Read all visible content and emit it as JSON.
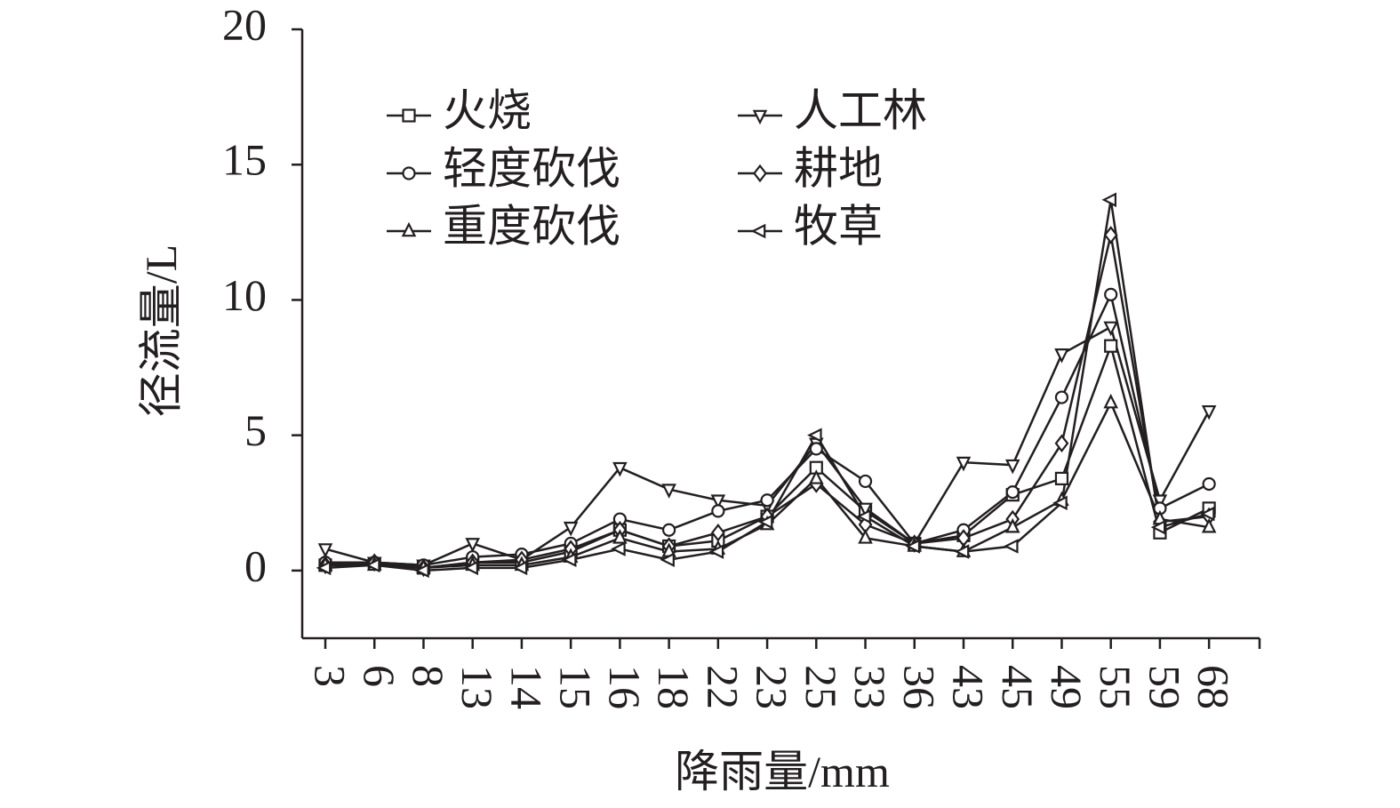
{
  "chart_data": {
    "type": "line",
    "x_label": "降雨量/mm",
    "y_label": "径流量/L",
    "categories": [
      "3",
      "6",
      "8",
      "13",
      "14",
      "15",
      "16",
      "18",
      "22",
      "23",
      "25",
      "33",
      "36",
      "43",
      "45",
      "49",
      "55",
      "59",
      "68"
    ],
    "ylim": [
      -2.5,
      20
    ],
    "yticks": [
      0,
      5,
      10,
      15,
      20
    ],
    "series": [
      {
        "name": "火烧",
        "color": "#231f20",
        "marker": "square",
        "values": [
          0.2,
          0.25,
          0.1,
          0.3,
          0.3,
          0.7,
          1.5,
          0.9,
          1.1,
          2.0,
          3.8,
          2.2,
          1.0,
          1.3,
          2.8,
          3.4,
          8.3,
          1.4,
          2.3
        ]
      },
      {
        "name": "人工林",
        "color": "#231f20",
        "marker": "triangle-down",
        "values": [
          0.8,
          0.3,
          0.2,
          1.0,
          0.4,
          1.6,
          3.8,
          3.0,
          2.6,
          2.4,
          4.7,
          2.3,
          1.0,
          4.0,
          3.9,
          8.0,
          9.0,
          2.6,
          5.9
        ]
      },
      {
        "name": "轻度砍伐",
        "color": "#231f20",
        "marker": "circle",
        "values": [
          0.3,
          0.3,
          0.2,
          0.5,
          0.6,
          1.0,
          1.9,
          1.5,
          2.2,
          2.6,
          4.5,
          3.3,
          1.0,
          1.5,
          2.9,
          6.4,
          10.2,
          2.3,
          3.2
        ]
      },
      {
        "name": "耕地",
        "color": "#231f20",
        "marker": "diamond",
        "values": [
          0.2,
          0.3,
          0.1,
          0.3,
          0.4,
          0.8,
          1.5,
          0.9,
          1.4,
          2.0,
          3.2,
          1.7,
          1.0,
          1.2,
          1.9,
          4.7,
          12.4,
          1.8,
          2.0
        ]
      },
      {
        "name": "重度砍伐",
        "color": "#231f20",
        "marker": "triangle-up",
        "values": [
          0.2,
          0.2,
          0.1,
          0.2,
          0.2,
          0.5,
          1.2,
          0.7,
          0.8,
          1.7,
          3.4,
          1.2,
          0.9,
          0.7,
          1.6,
          2.6,
          6.2,
          1.9,
          1.6
        ]
      },
      {
        "name": "牧草",
        "color": "#231f20",
        "marker": "triangle-left",
        "values": [
          0.1,
          0.2,
          0.0,
          0.1,
          0.1,
          0.4,
          0.8,
          0.4,
          0.7,
          1.8,
          5.0,
          2.0,
          0.9,
          0.7,
          0.9,
          2.5,
          13.7,
          1.6,
          2.1
        ]
      }
    ]
  }
}
